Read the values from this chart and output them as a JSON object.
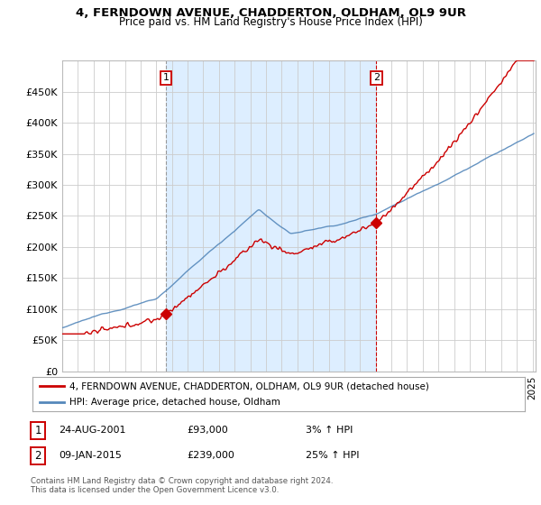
{
  "title": "4, FERNDOWN AVENUE, CHADDERTON, OLDHAM, OL9 9UR",
  "subtitle": "Price paid vs. HM Land Registry's House Price Index (HPI)",
  "legend_line1": "4, FERNDOWN AVENUE, CHADDERTON, OLDHAM, OL9 9UR (detached house)",
  "legend_line2": "HPI: Average price, detached house, Oldham",
  "transaction1_date": "24-AUG-2001",
  "transaction1_price": "£93,000",
  "transaction1_hpi": "3% ↑ HPI",
  "transaction2_date": "09-JAN-2015",
  "transaction2_price": "£239,000",
  "transaction2_hpi": "25% ↑ HPI",
  "footnote": "Contains HM Land Registry data © Crown copyright and database right 2024.\nThis data is licensed under the Open Government Licence v3.0.",
  "red_color": "#cc0000",
  "blue_color": "#5588bb",
  "shade_color": "#ddeeff",
  "background_color": "#ffffff",
  "grid_color": "#cccccc",
  "ylim": [
    0,
    500000
  ],
  "yticks": [
    0,
    50000,
    100000,
    150000,
    200000,
    250000,
    300000,
    350000,
    400000,
    450000
  ],
  "year_start": 1995,
  "year_end": 2025
}
